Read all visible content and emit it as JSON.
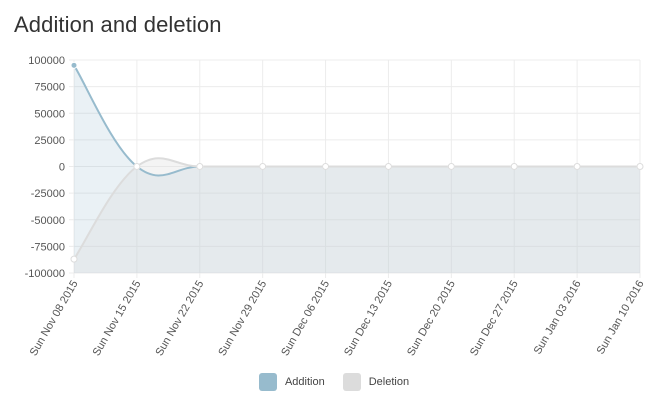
{
  "panel": {
    "title": "Addition and deletion"
  },
  "chart_data": {
    "type": "area",
    "title": "Addition and deletion",
    "categories": [
      "Sun Nov 08 2015",
      "Sun Nov 15 2015",
      "Sun Nov 22 2015",
      "Sun Nov 29 2015",
      "Sun Dec 06 2015",
      "Sun Dec 13 2015",
      "Sun Dec 20 2015",
      "Sun Dec 27 2015",
      "Sun Jan 03 2016",
      "Sun Jan 10 2016"
    ],
    "series": [
      {
        "name": "Addition",
        "values": [
          95000,
          0,
          0,
          0,
          0,
          0,
          0,
          0,
          0,
          0
        ],
        "color": "#97bbcd"
      },
      {
        "name": "Deletion",
        "values": [
          -87000,
          0,
          0,
          0,
          0,
          0,
          0,
          0,
          0,
          0
        ],
        "color": "#dcdcdc"
      }
    ],
    "ylim": [
      -100000,
      100000
    ],
    "yticks": [
      100000,
      75000,
      50000,
      25000,
      0,
      -25000,
      -50000,
      -75000,
      -100000
    ],
    "ytick_labels": [
      "100000",
      "75000",
      "50000",
      "25000",
      "0",
      "-25000",
      "-50000",
      "-75000",
      "-100000"
    ],
    "grid": true,
    "legend": "bottom-center"
  }
}
